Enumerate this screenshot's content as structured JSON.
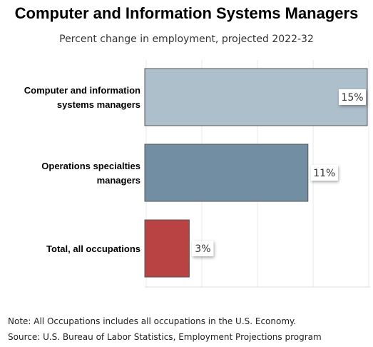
{
  "chart_data": {
    "type": "bar",
    "orientation": "horizontal",
    "title": "Computer and Information Systems Managers",
    "subtitle": "Percent change in employment, projected 2022-32",
    "categories": [
      [
        "Computer and information",
        "systems managers"
      ],
      [
        "Operations specialties",
        "managers"
      ],
      [
        "Total, all occupations"
      ]
    ],
    "values": [
      15,
      11,
      3
    ],
    "value_labels": [
      "15%",
      "11%",
      "3%"
    ],
    "colors": [
      "#acbfcb",
      "#728ea3",
      "#b94242"
    ],
    "xlim": [
      0,
      15
    ],
    "grid": true,
    "legend": "none"
  },
  "notes": {
    "note": "Note: All Occupations includes all occupations in the U.S. Economy.",
    "source": "Source: U.S. Bureau of Labor Statistics, Employment Projections program"
  }
}
